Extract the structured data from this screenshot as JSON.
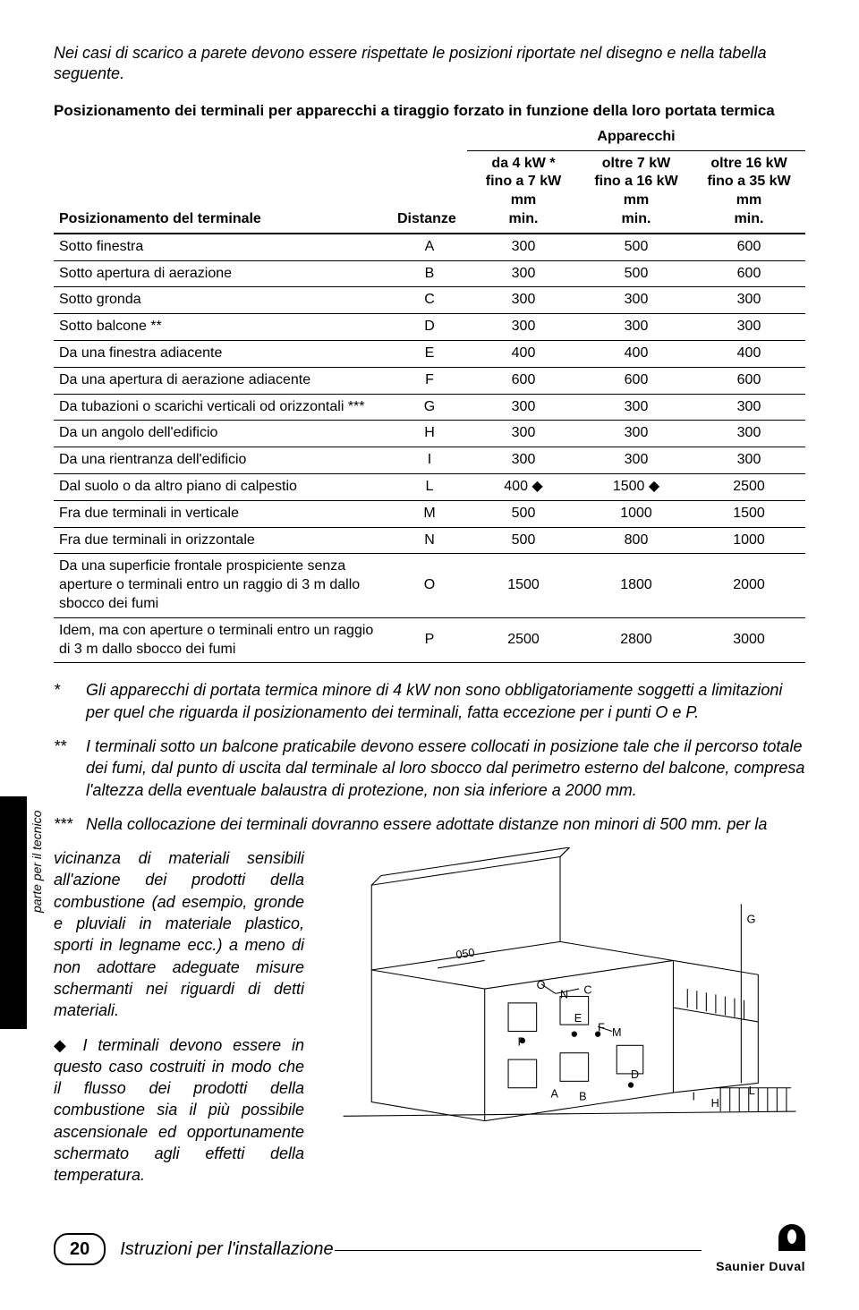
{
  "intro": "Nei casi di scarico a parete devono essere rispettate le posizioni riportate nel disegno e nella tabella seguente.",
  "table": {
    "title": "Posizionamento dei terminali per apparecchi a tiraggio forzato in funzione della loro portata termica",
    "apparecchi_header": "Apparecchi",
    "col_pos": "Posizionamento del terminale",
    "col_dist": "Distanze",
    "col1": "da 4 kW *\nfino a 7 kW\nmm\nmin.",
    "col2": "oltre 7 kW\nfino a 16 kW\nmm\nmin.",
    "col3": "oltre 16 kW\nfino a 35 kW\nmm\nmin.",
    "rows": [
      {
        "label": "Sotto finestra",
        "d": "A",
        "v1": "300",
        "v2": "500",
        "v3": "600"
      },
      {
        "label": "Sotto apertura di aerazione",
        "d": "B",
        "v1": "300",
        "v2": "500",
        "v3": "600"
      },
      {
        "label": "Sotto gronda",
        "d": "C",
        "v1": "300",
        "v2": "300",
        "v3": "300"
      },
      {
        "label": "Sotto balcone **",
        "d": "D",
        "v1": "300",
        "v2": "300",
        "v3": "300"
      },
      {
        "label": "Da una finestra adiacente",
        "d": "E",
        "v1": "400",
        "v2": "400",
        "v3": "400"
      },
      {
        "label": "Da una apertura di aerazione adiacente",
        "d": "F",
        "v1": "600",
        "v2": "600",
        "v3": "600"
      },
      {
        "label": "Da tubazioni o scarichi verticali od orizzontali ***",
        "d": "G",
        "v1": "300",
        "v2": "300",
        "v3": "300"
      },
      {
        "label": "Da un angolo dell'edificio",
        "d": "H",
        "v1": "300",
        "v2": "300",
        "v3": "300"
      },
      {
        "label": "Da una rientranza dell'edificio",
        "d": "I",
        "v1": "300",
        "v2": "300",
        "v3": "300"
      },
      {
        "label": "Dal suolo o da altro piano di calpestio",
        "d": "L",
        "v1": "400 ◆",
        "v2": "1500 ◆",
        "v3": "2500"
      },
      {
        "label": "Fra due terminali in verticale",
        "d": "M",
        "v1": "500",
        "v2": "1000",
        "v3": "1500"
      },
      {
        "label": "Fra due terminali in orizzontale",
        "d": "N",
        "v1": "500",
        "v2": "800",
        "v3": "1000"
      },
      {
        "label": "Da una superficie frontale prospiciente senza aperture o terminali entro un raggio di 3 m dallo sbocco dei fumi",
        "d": "O",
        "v1": "1500",
        "v2": "1800",
        "v3": "2000"
      },
      {
        "label": "Idem, ma con aperture o terminali entro un raggio di 3 m dallo sbocco dei fumi",
        "d": "P",
        "v1": "2500",
        "v2": "2800",
        "v3": "3000"
      }
    ]
  },
  "footnotes": {
    "star1_mark": "*",
    "star1": "Gli apparecchi di portata termica minore di 4 kW non sono obbligatoriamente soggetti a limitazioni per quel che riguarda il posizionamento dei terminali, fatta eccezione per i punti O e P.",
    "star2_mark": "**",
    "star2": "I terminali sotto un balcone praticabile devono essere collocati in posizione tale che il percorso totale dei fumi, dal punto di uscita dal terminale al loro sbocco dal perimetro esterno del balcone, compresa l'altezza della eventuale balaustra di protezione, non sia inferiore a 2000 mm.",
    "star3_mark": "***",
    "star3_lead": "Nella collocazione dei terminali dovranno essere adottate distanze non minori di 500 mm. per la",
    "star3_rest": "vicinanza di materiali sensibili all'azione dei prodotti della combustione (ad esempio, gronde e pluviali in materiale plastico, sporti in legname ecc.) a meno di non adottare adeguate misure schermanti nei riguardi di detti materiali.",
    "diamond_mark": "◆",
    "diamond": "I terminali devono essere in questo caso costruiti in modo che il flusso dei prodotti della combustione sia il più possibile ascensionale ed opportunamente schermato agli effetti della temperatura."
  },
  "side_label": "parte per il tecnico",
  "page_num": "20",
  "footer_text": "Istruzioni per l'installazione",
  "brand": "Saunier Duval",
  "diagram": {
    "labels": [
      "O",
      "N",
      "C",
      "E",
      "F",
      "P",
      "M",
      "A",
      "B",
      "D",
      "G",
      "I",
      "H",
      "L"
    ],
    "dim050": "050"
  }
}
